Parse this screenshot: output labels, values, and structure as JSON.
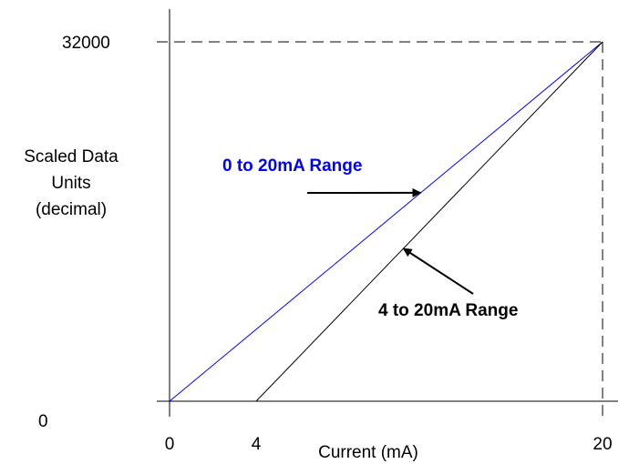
{
  "chart_data": {
    "type": "line",
    "title": "",
    "xlabel": "Current (mA)",
    "ylabel_lines": [
      "Scaled Data",
      "Units",
      "(decimal)"
    ],
    "xlim": [
      0,
      20
    ],
    "ylim": [
      0,
      32000
    ],
    "x_ticks": [
      {
        "value": 0,
        "label": "0"
      },
      {
        "value": 4,
        "label": "4"
      },
      {
        "value": 20,
        "label": "20"
      }
    ],
    "y_ticks": [
      {
        "value": 0,
        "label": "0"
      },
      {
        "value": 32000,
        "label": "32000"
      }
    ],
    "series": [
      {
        "name": "0 to 20mA Range",
        "color": "#0000ff",
        "x": [
          0,
          20
        ],
        "y": [
          0,
          32000
        ]
      },
      {
        "name": "4 to 20mA Range",
        "color": "#000000",
        "x": [
          4,
          20
        ],
        "y": [
          0,
          32000
        ]
      }
    ],
    "guides": {
      "style": "dashed",
      "vertical_at_x": 20,
      "horizontal_at_y": 32000
    },
    "annotations": [
      {
        "text": "0 to 20mA Range",
        "color": "#0000ff",
        "points_to_series": 0,
        "at_x": 11.6
      },
      {
        "text": "4 to 20mA Range",
        "color": "#000000",
        "points_to_series": 1,
        "at_x": 10.8
      }
    ],
    "grid": false,
    "legend": "none"
  }
}
